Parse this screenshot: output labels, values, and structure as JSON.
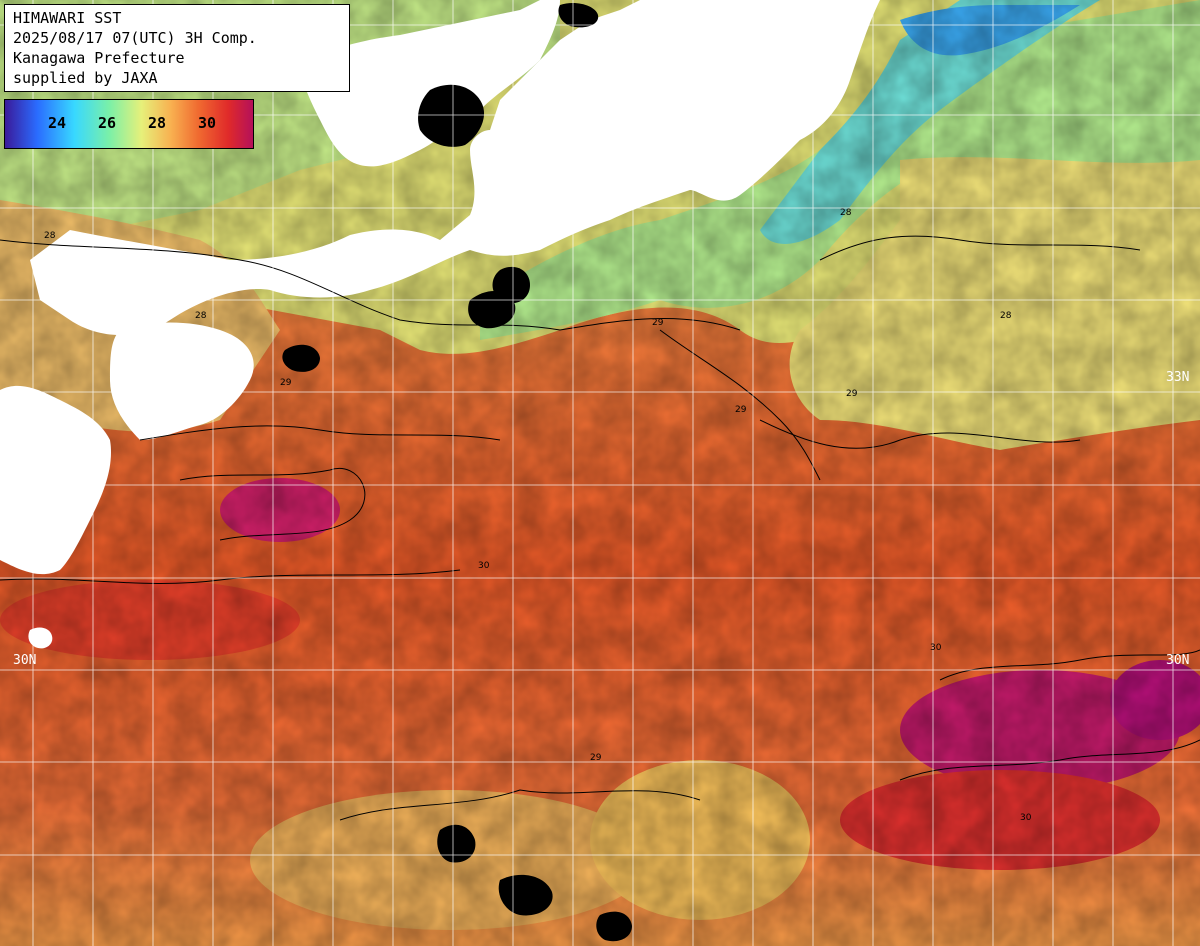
{
  "header": {
    "title": "HIMAWARI SST",
    "datetime": "2025/08/17 07(UTC) 3H Comp.",
    "region": "Kanagawa Prefecture",
    "credit": "supplied by JAXA"
  },
  "legend": {
    "ticks": [
      "24",
      "26",
      "28",
      "30"
    ],
    "colors": [
      "#3a1a9a",
      "#2a6cff",
      "#38d8ff",
      "#7af0a8",
      "#e6f07a",
      "#f8b050",
      "#f06a30",
      "#e02a2a",
      "#b4105a"
    ]
  },
  "lat_labels": {
    "n33_right": "33N",
    "n30_left": "30N",
    "n30_right": "30N"
  },
  "contour_labels": [
    "28",
    "28",
    "29",
    "29",
    "29",
    "30",
    "30",
    "28",
    "29",
    "30",
    "28",
    "29"
  ],
  "colors": {
    "land": "#ffffff",
    "cloud_mask": "#000000",
    "warm": "#f05a28",
    "hot": "#c4185c",
    "mild": "#f0c060",
    "cool": "#9cf07a",
    "cold": "#40c8f0",
    "grid": "#ffffff"
  }
}
